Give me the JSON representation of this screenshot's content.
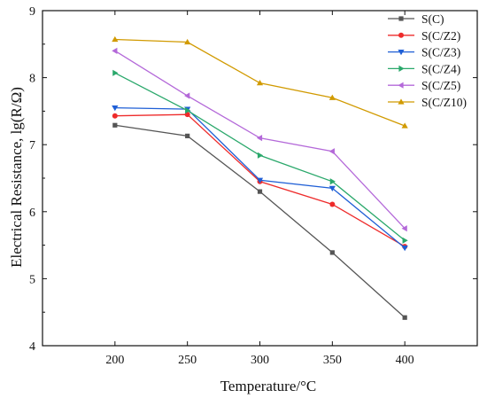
{
  "chart_data": {
    "type": "line",
    "xlabel": "Temperature/°C",
    "ylabel": "Electrical Resistance,  lg(R/Ω)",
    "x": [
      200,
      250,
      300,
      350,
      400
    ],
    "xlim": [
      150,
      450
    ],
    "ylim": [
      4,
      9
    ],
    "xticks": [
      "200",
      "250",
      "300",
      "350",
      "400"
    ],
    "yticks": [
      "4",
      "5",
      "6",
      "7",
      "8",
      "9"
    ],
    "grid": false,
    "legend_position": "top-right",
    "series": [
      {
        "name": "S(C)",
        "color": "#555555",
        "marker": "square",
        "values": [
          7.29,
          7.13,
          6.3,
          5.39,
          4.42
        ]
      },
      {
        "name": "S(C/Z2)",
        "color": "#ee2b2b",
        "marker": "circle",
        "values": [
          7.43,
          7.45,
          6.45,
          6.11,
          5.48
        ]
      },
      {
        "name": "S(C/Z3)",
        "color": "#1f5fd6",
        "marker": "triangle-down",
        "values": [
          7.55,
          7.53,
          6.47,
          6.35,
          5.46
        ]
      },
      {
        "name": "S(C/Z4)",
        "color": "#2aa86b",
        "marker": "triangle-right",
        "values": [
          8.07,
          7.51,
          6.84,
          6.45,
          5.57
        ]
      },
      {
        "name": "S(C/Z5)",
        "color": "#b469d9",
        "marker": "triangle-left",
        "values": [
          8.4,
          7.73,
          7.1,
          6.9,
          5.75
        ]
      },
      {
        "name": "S(C/Z10)",
        "color": "#d19a00",
        "marker": "triangle-up",
        "values": [
          8.57,
          8.53,
          7.92,
          7.7,
          7.28
        ]
      }
    ]
  }
}
